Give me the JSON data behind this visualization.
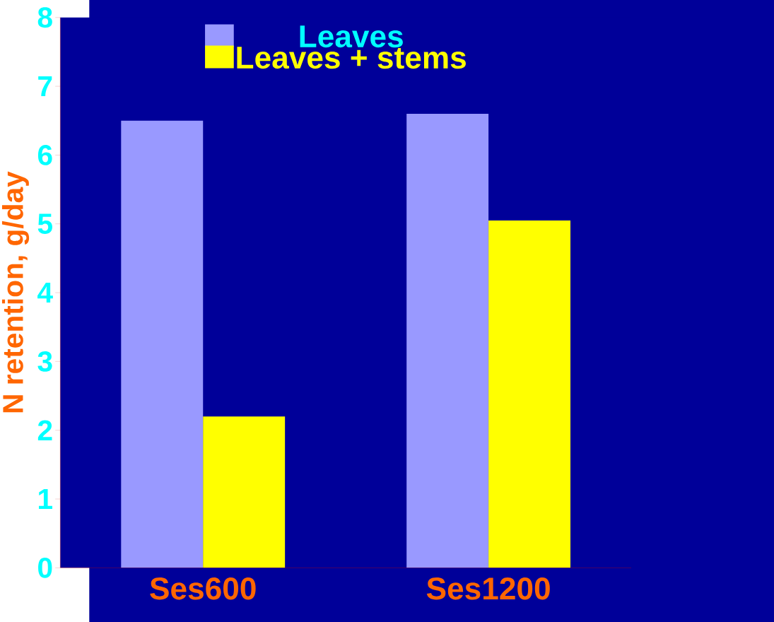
{
  "chart_data": {
    "type": "bar",
    "ylabel": "N retention, g/day",
    "categories": [
      "Ses600",
      "Ses1200"
    ],
    "series": [
      {
        "name": "Leaves",
        "color": "#9999ff",
        "values": [
          6.5,
          6.6
        ]
      },
      {
        "name": "Leaves + stems",
        "color": "#ffff00",
        "values": [
          2.2,
          5.05
        ]
      }
    ],
    "ylim": [
      0,
      8
    ],
    "yticks": [
      0,
      1,
      2,
      3,
      4,
      5,
      6,
      7,
      8
    ],
    "grid": false,
    "legend": "top"
  }
}
